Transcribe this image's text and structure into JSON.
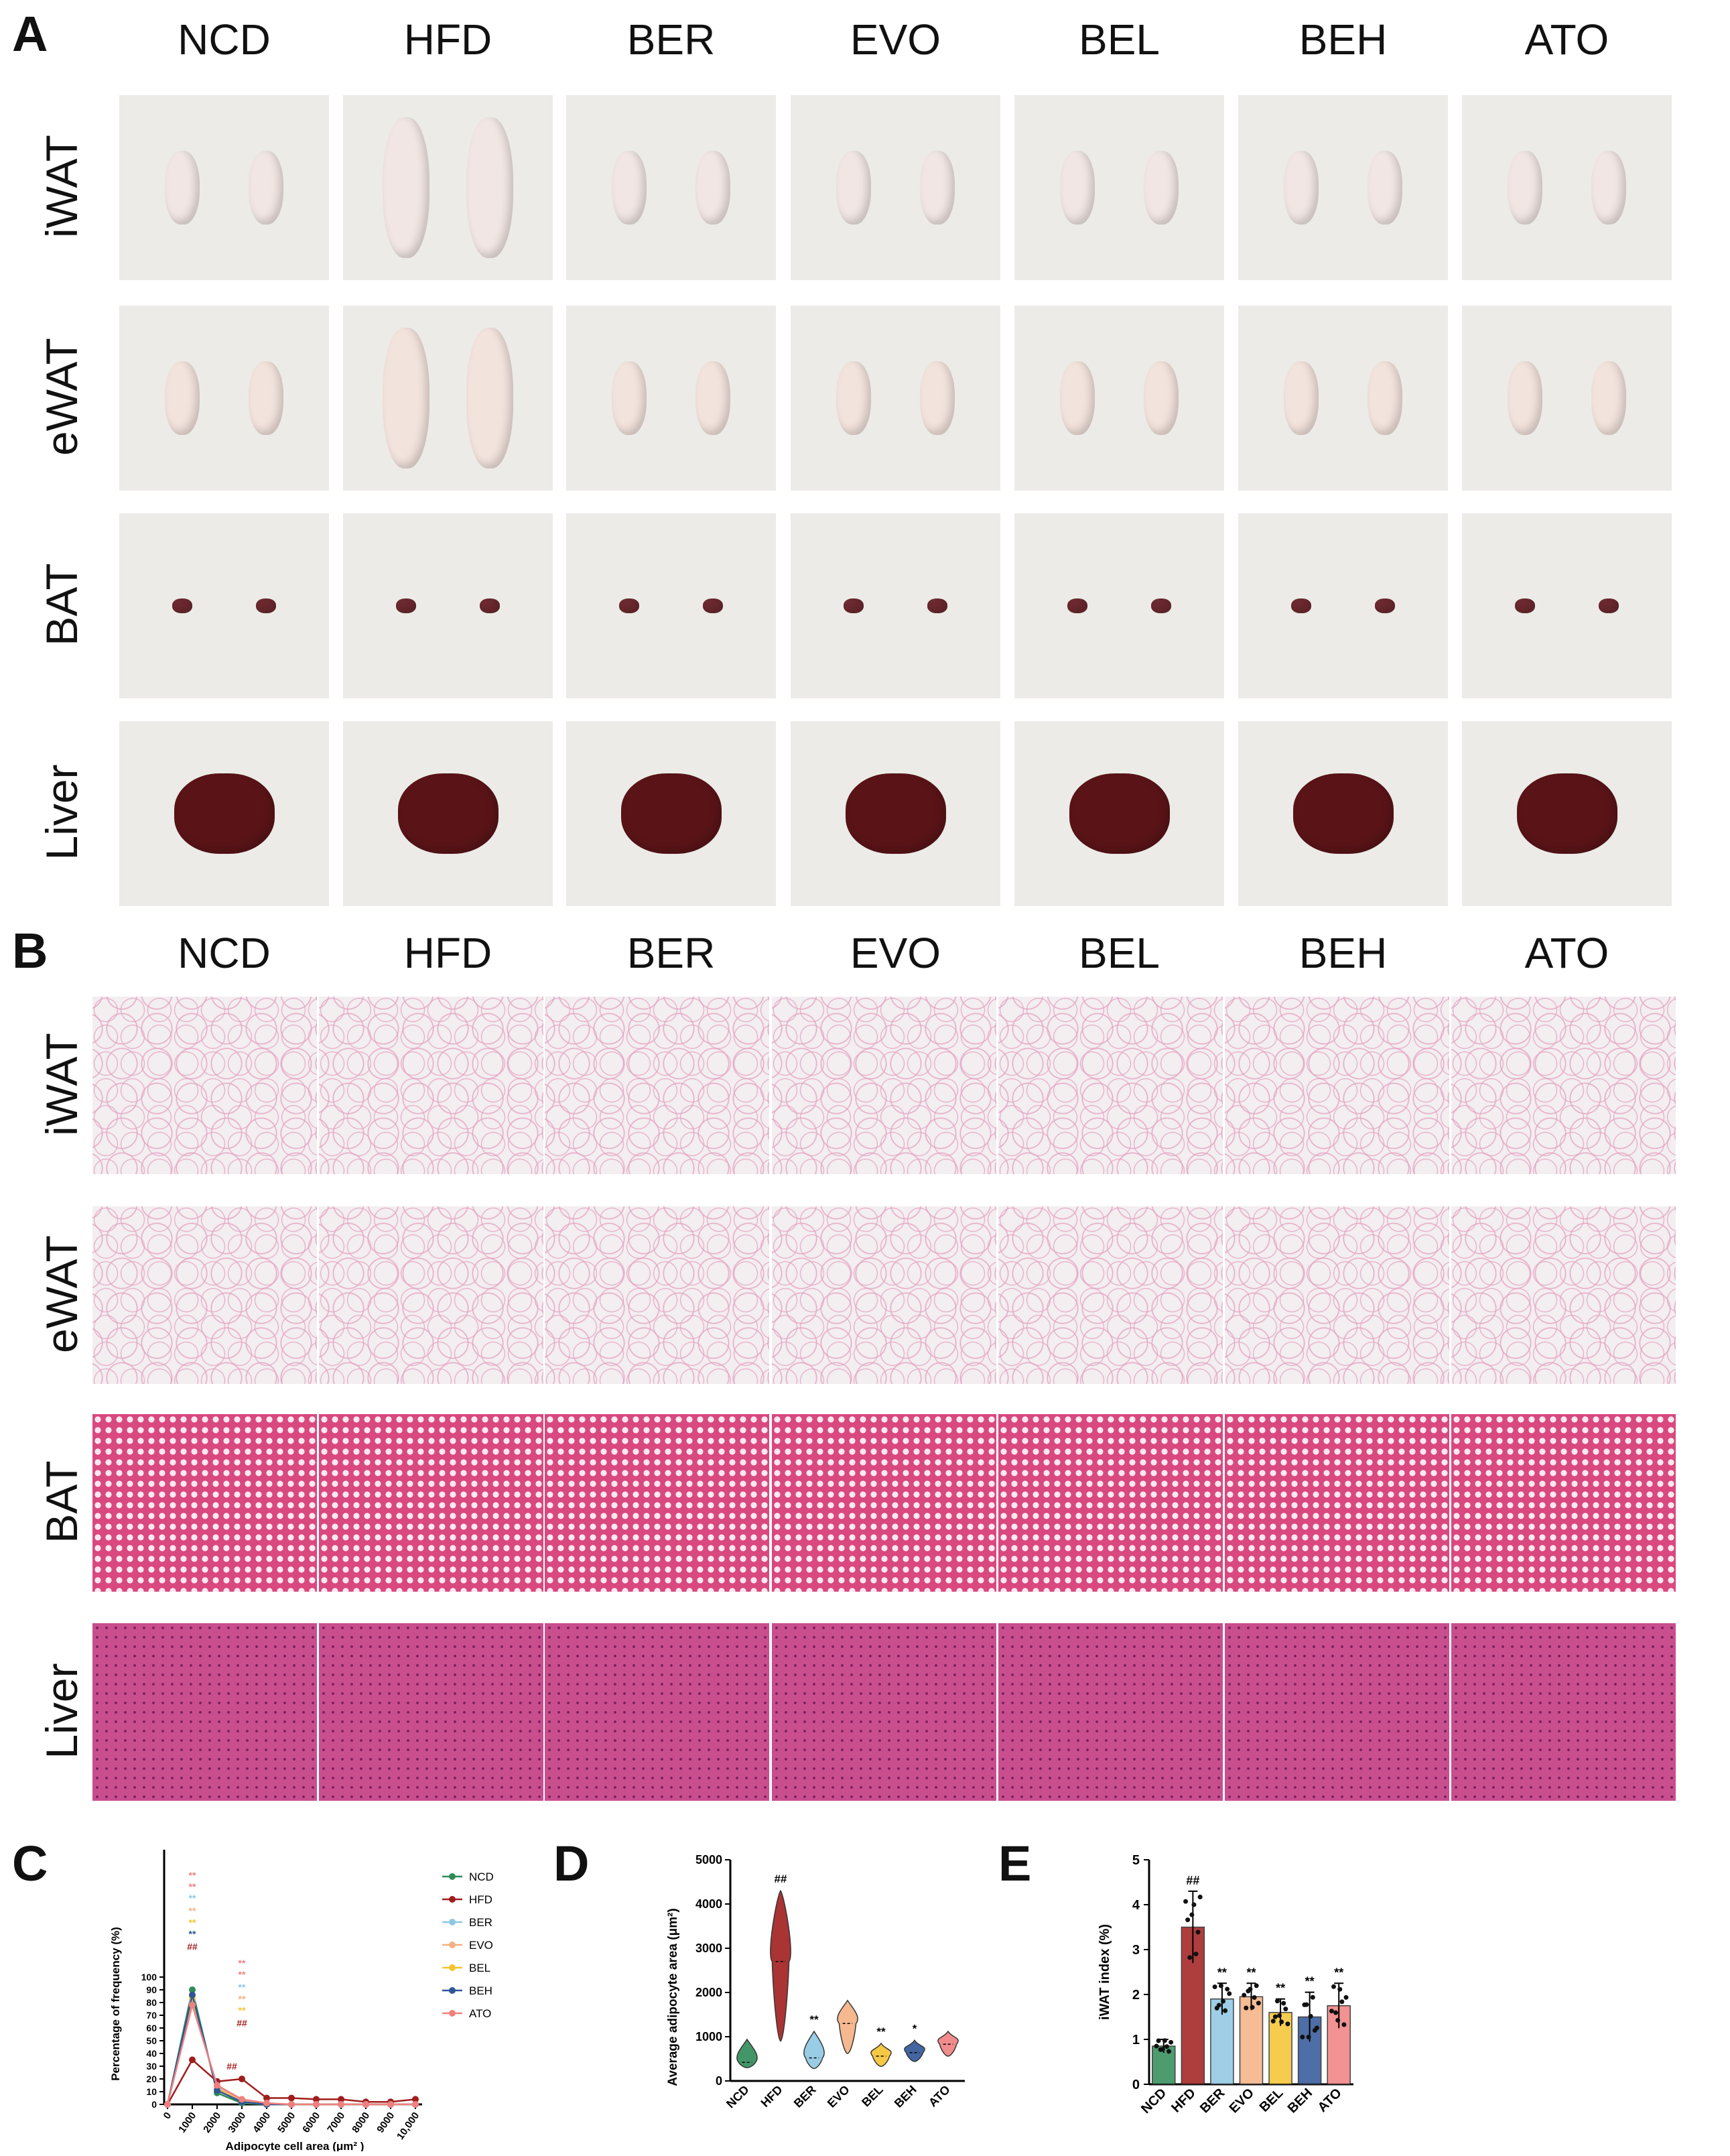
{
  "panels": {
    "a": "A",
    "b": "B",
    "c": "C",
    "d": "D",
    "e": "E"
  },
  "groups": [
    "NCD",
    "HFD",
    "BER",
    "EVO",
    "BEL",
    "BEH",
    "ATO"
  ],
  "tissues": [
    "iWAT",
    "eWAT",
    "BAT",
    "Liver"
  ],
  "colors": {
    "NCD": "#2e8b57",
    "HFD": "#a11d1d",
    "BER": "#8ec7e3",
    "EVO": "#f4b183",
    "BEL": "#f4c430",
    "BEH": "#2f5597",
    "ATO": "#f08080"
  },
  "tissue_colors": {
    "iWAT": "#f1e6e3",
    "eWAT": "#f3e3dd",
    "BAT": "#6e2a30",
    "Liver": "#5a1418"
  },
  "chart_data": [
    {
      "type": "line",
      "panel": "C",
      "xlabel": "Adipocyte cell area (μm² )",
      "ylabel": "Percentage of frequency (%)",
      "x": [
        0,
        1000,
        2000,
        3000,
        4000,
        5000,
        6000,
        7000,
        8000,
        9000,
        10000
      ],
      "x_tick_labels": [
        "0",
        "1000",
        "2000",
        "3000",
        "4000",
        "5000",
        "6000",
        "7000",
        "8000",
        "9000",
        "10,000"
      ],
      "ylim": [
        0,
        200
      ],
      "y_ticks": [
        0,
        10,
        20,
        30,
        40,
        50,
        60,
        70,
        80,
        90,
        100
      ],
      "series": [
        {
          "name": "NCD",
          "values": [
            0,
            90,
            9,
            1,
            0,
            0,
            0,
            0,
            0,
            0,
            0
          ]
        },
        {
          "name": "HFD",
          "values": [
            0,
            35,
            18,
            20,
            5,
            5,
            4,
            4,
            2,
            2,
            4
          ]
        },
        {
          "name": "BER",
          "values": [
            0,
            80,
            14,
            2,
            0,
            0,
            0,
            0,
            0,
            0,
            0
          ]
        },
        {
          "name": "EVO",
          "values": [
            0,
            82,
            13,
            3,
            1,
            0,
            0,
            0,
            0,
            0,
            0
          ]
        },
        {
          "name": "BEL",
          "values": [
            0,
            84,
            12,
            2,
            0,
            0,
            0,
            0,
            0,
            0,
            0
          ]
        },
        {
          "name": "BEH",
          "values": [
            0,
            86,
            11,
            2,
            0,
            0,
            0,
            0,
            0,
            0,
            0
          ]
        },
        {
          "name": "ATO",
          "values": [
            0,
            78,
            15,
            4,
            1,
            0,
            0,
            0,
            0,
            0,
            0
          ]
        }
      ],
      "annotations": [
        {
          "x": 1000,
          "y": 124,
          "text": "##"
        },
        {
          "x": 1000,
          "y": 134,
          "text": "**"
        },
        {
          "x": 1000,
          "y": 143,
          "text": "**"
        },
        {
          "x": 1000,
          "y": 152,
          "text": "**"
        },
        {
          "x": 1000,
          "y": 162,
          "text": "**"
        },
        {
          "x": 1000,
          "y": 171,
          "text": "**"
        },
        {
          "x": 1000,
          "y": 180,
          "text": "**"
        },
        {
          "x": 2000,
          "y": 30,
          "text": "##"
        },
        {
          "x": 3000,
          "y": 64,
          "text": "##"
        },
        {
          "x": 3000,
          "y": 74,
          "text": "**"
        },
        {
          "x": 3000,
          "y": 83,
          "text": "**"
        },
        {
          "x": 3000,
          "y": 92,
          "text": "**"
        },
        {
          "x": 3000,
          "y": 102,
          "text": "**"
        },
        {
          "x": 3000,
          "y": 111,
          "text": "**"
        }
      ],
      "legend_position": "right"
    },
    {
      "type": "violin",
      "panel": "D",
      "ylabel": "Average adipocyte area (μm²)",
      "categories": [
        "NCD",
        "HFD",
        "BER",
        "EVO",
        "BEL",
        "BEH",
        "ATO"
      ],
      "ylim": [
        0,
        5000
      ],
      "y_ticks": [
        0,
        1000,
        2000,
        3000,
        4000,
        5000
      ],
      "min": [
        300,
        900,
        280,
        620,
        330,
        440,
        560
      ],
      "max": [
        940,
        4300,
        1120,
        1820,
        850,
        920,
        1120
      ],
      "median": [
        420,
        2700,
        520,
        1300,
        560,
        640,
        830
      ],
      "significance": [
        "",
        "##",
        "**",
        "",
        "**",
        "*",
        ""
      ]
    },
    {
      "type": "bar",
      "panel": "E",
      "ylabel": "iWAT index (%)",
      "categories": [
        "NCD",
        "HFD",
        "BER",
        "EVO",
        "BEL",
        "BEH",
        "ATO"
      ],
      "values": [
        0.85,
        3.5,
        1.9,
        1.95,
        1.6,
        1.5,
        1.75
      ],
      "error": [
        0.15,
        0.8,
        0.35,
        0.3,
        0.3,
        0.55,
        0.5
      ],
      "ylim": [
        0,
        5
      ],
      "y_ticks": [
        0,
        1,
        2,
        3,
        4,
        5
      ],
      "significance": [
        "",
        "##",
        "**",
        "**",
        "**",
        "**",
        "**"
      ]
    }
  ]
}
